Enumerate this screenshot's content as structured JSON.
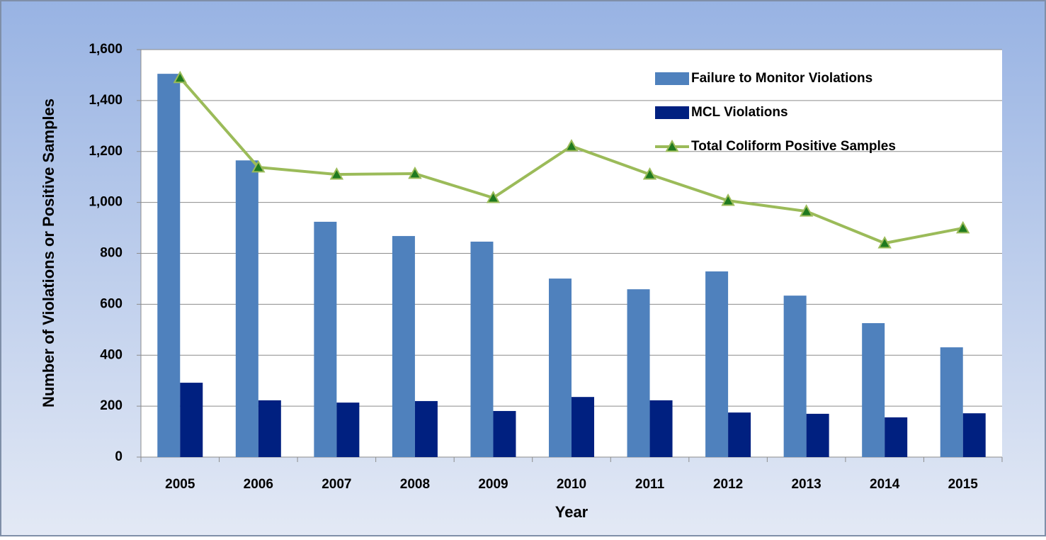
{
  "chart_data": {
    "type": "bar",
    "x_label": "Year",
    "y_label": "Number of Violations or Positive Samples",
    "categories": [
      "2005",
      "2006",
      "2007",
      "2008",
      "2009",
      "2010",
      "2011",
      "2012",
      "2013",
      "2014",
      "2015"
    ],
    "series": [
      {
        "name": "Failure to Monitor Violations",
        "type": "bar",
        "color": "#4f81bd",
        "values": [
          1505,
          1165,
          924,
          868,
          846,
          701,
          659,
          729,
          634,
          526,
          431
        ]
      },
      {
        "name": "MCL Violations",
        "type": "bar",
        "color": "#002080",
        "values": [
          292,
          223,
          214,
          220,
          181,
          236,
          223,
          175,
          170,
          156,
          172
        ]
      },
      {
        "name": "Total Coliform Positive Samples",
        "type": "line",
        "color": "#9bbb59",
        "marker_color": "#1f7a1f",
        "values": [
          1489,
          1138,
          1110,
          1113,
          1018,
          1221,
          1110,
          1007,
          965,
          840,
          899
        ]
      }
    ],
    "ylim": [
      0,
      1600
    ],
    "yticks": [
      0,
      200,
      400,
      600,
      800,
      {
        "value": 1000,
        "label": "1,000"
      },
      {
        "value": 1200,
        "label": "1,200"
      },
      {
        "value": 1400,
        "label": "1,400"
      },
      {
        "value": 1600,
        "label": "1,600"
      }
    ],
    "grid": true,
    "legend": "top-right"
  }
}
